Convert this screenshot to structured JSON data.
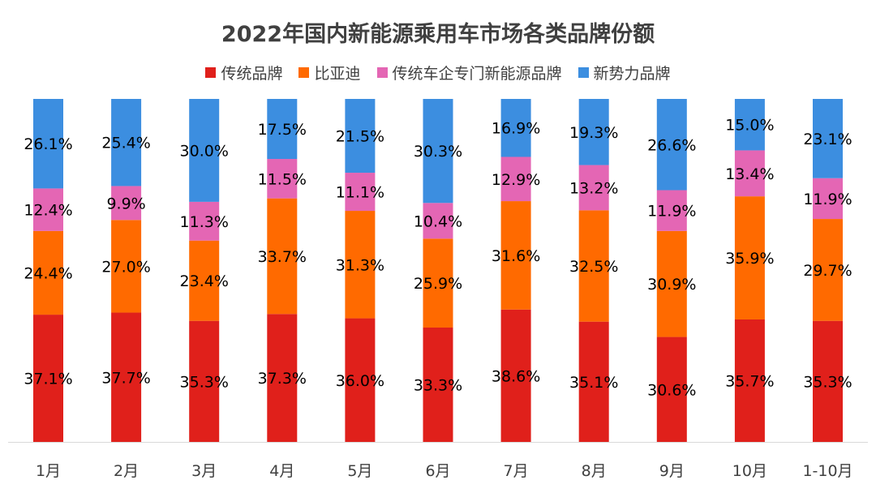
{
  "chart_data": {
    "type": "bar",
    "stacked": true,
    "percent": true,
    "title": "2022年国内新能源乘用车市场各类品牌份额",
    "categories": [
      "1月",
      "2月",
      "3月",
      "4月",
      "5月",
      "6月",
      "7月",
      "8月",
      "9月",
      "10月",
      "1-10月"
    ],
    "series": [
      {
        "name": "传统品牌",
        "color": "#e0201b",
        "values": [
          37.1,
          37.7,
          35.3,
          37.3,
          36.0,
          33.3,
          38.6,
          35.1,
          30.6,
          35.7,
          35.3
        ]
      },
      {
        "name": "比亚迪",
        "color": "#ff6a00",
        "values": [
          24.4,
          27.0,
          23.4,
          33.7,
          31.3,
          25.9,
          31.6,
          32.5,
          30.9,
          35.9,
          29.7
        ]
      },
      {
        "name": "传统车企专门新能源品牌",
        "color": "#e466b4",
        "values": [
          12.4,
          9.9,
          11.3,
          11.5,
          11.1,
          10.4,
          12.9,
          13.2,
          11.9,
          13.4,
          11.9
        ]
      },
      {
        "name": "新势力品牌",
        "color": "#3c8ee0",
        "values": [
          26.1,
          25.4,
          30.0,
          17.5,
          21.5,
          30.3,
          16.9,
          19.3,
          26.6,
          15.0,
          23.1
        ]
      }
    ],
    "ylim": [
      0,
      100
    ],
    "legend": "top",
    "grid": false,
    "data_label_suffix": "%"
  }
}
